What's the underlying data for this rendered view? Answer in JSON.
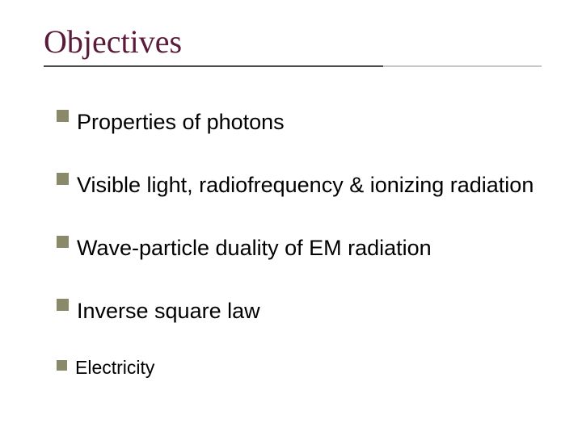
{
  "slide": {
    "title": "Objectives",
    "title_color": "#5a1a3a",
    "title_fontsize": 40,
    "underline_dark_color": "#4a4a4a",
    "underline_light_color": "#c8c8c8",
    "background_color": "#ffffff",
    "bullet_color": "#8a8a6a",
    "body_text_color": "#000000",
    "body_fontsize": 27,
    "body_fontsize_small": 23,
    "items": [
      {
        "text": "Properties of photons",
        "small": false
      },
      {
        "text": "Visible light, radiofrequency & ionizing radiation",
        "small": false
      },
      {
        "text": "Wave-particle duality of EM radiation",
        "small": false
      },
      {
        "text": "Inverse square law",
        "small": false
      },
      {
        "text": "Electricity",
        "small": true
      }
    ]
  }
}
